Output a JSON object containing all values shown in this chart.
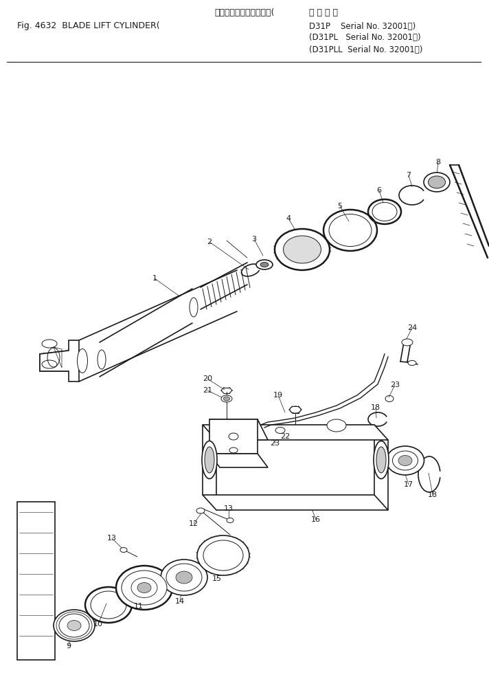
{
  "title_line1": "ブレードリフトシリンダ(",
  "title_line2": "Fig. 4632  BLADE LIFT CYLINDER(",
  "applicable": "適 用 号 機",
  "models": [
    "D31P    Serial No. 32001～)",
    "(D31PL   Serial No. 32001～)",
    "(D31PLL  Serial No. 32001～)"
  ],
  "bg": "#ffffff",
  "lc": "#1a1a1a",
  "fig_w": 7.12,
  "fig_h": 10.14,
  "dpi": 100
}
